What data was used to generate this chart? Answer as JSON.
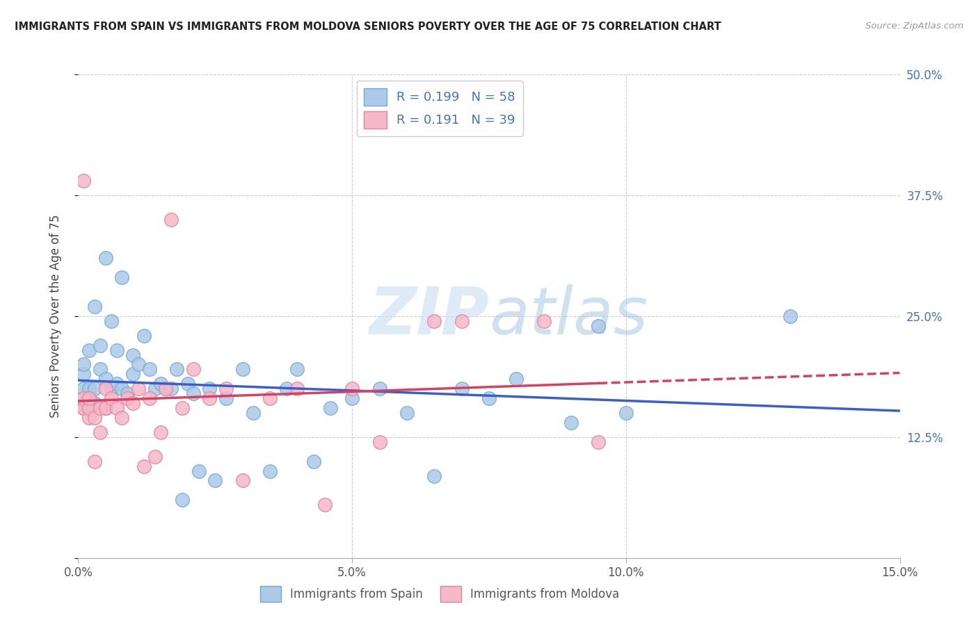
{
  "title": "IMMIGRANTS FROM SPAIN VS IMMIGRANTS FROM MOLDOVA SENIORS POVERTY OVER THE AGE OF 75 CORRELATION CHART",
  "source": "Source: ZipAtlas.com",
  "ylabel": "Seniors Poverty Over the Age of 75",
  "xlim": [
    0,
    0.15
  ],
  "ylim": [
    0,
    0.5
  ],
  "spain_color": "#adc8e8",
  "spain_edge": "#6aaed6",
  "moldova_color": "#f4b8c8",
  "moldova_edge": "#e8809a",
  "trend_spain_color": "#3a5fcd",
  "trend_moldova_color": "#d94060",
  "spain_R": 0.199,
  "spain_N": 58,
  "moldova_R": 0.191,
  "moldova_N": 39,
  "legend_label_spain": "Immigrants from Spain",
  "legend_label_moldova": "Immigrants from Moldova",
  "watermark_zip": "ZIP",
  "watermark_atlas": "atlas",
  "spain_x": [
    0.001,
    0.001,
    0.001,
    0.001,
    0.002,
    0.002,
    0.002,
    0.002,
    0.003,
    0.003,
    0.003,
    0.004,
    0.004,
    0.005,
    0.005,
    0.005,
    0.006,
    0.006,
    0.007,
    0.007,
    0.008,
    0.008,
    0.009,
    0.01,
    0.01,
    0.011,
    0.012,
    0.013,
    0.014,
    0.015,
    0.016,
    0.017,
    0.018,
    0.019,
    0.02,
    0.021,
    0.022,
    0.024,
    0.025,
    0.027,
    0.03,
    0.032,
    0.035,
    0.038,
    0.04,
    0.043,
    0.046,
    0.05,
    0.055,
    0.06,
    0.065,
    0.07,
    0.075,
    0.08,
    0.09,
    0.095,
    0.1,
    0.13
  ],
  "spain_y": [
    0.16,
    0.175,
    0.19,
    0.2,
    0.155,
    0.165,
    0.175,
    0.215,
    0.16,
    0.175,
    0.26,
    0.195,
    0.22,
    0.155,
    0.185,
    0.31,
    0.175,
    0.245,
    0.18,
    0.215,
    0.175,
    0.29,
    0.17,
    0.19,
    0.21,
    0.2,
    0.23,
    0.195,
    0.175,
    0.18,
    0.175,
    0.175,
    0.195,
    0.06,
    0.18,
    0.17,
    0.09,
    0.175,
    0.08,
    0.165,
    0.195,
    0.15,
    0.09,
    0.175,
    0.195,
    0.1,
    0.155,
    0.165,
    0.175,
    0.15,
    0.085,
    0.175,
    0.165,
    0.185,
    0.14,
    0.24,
    0.15,
    0.25
  ],
  "moldova_x": [
    0.001,
    0.001,
    0.001,
    0.001,
    0.002,
    0.002,
    0.002,
    0.003,
    0.003,
    0.004,
    0.004,
    0.005,
    0.005,
    0.006,
    0.007,
    0.008,
    0.009,
    0.01,
    0.011,
    0.012,
    0.013,
    0.014,
    0.015,
    0.016,
    0.017,
    0.019,
    0.021,
    0.024,
    0.027,
    0.03,
    0.035,
    0.04,
    0.045,
    0.05,
    0.055,
    0.065,
    0.07,
    0.085,
    0.095
  ],
  "moldova_y": [
    0.155,
    0.155,
    0.165,
    0.39,
    0.145,
    0.155,
    0.165,
    0.145,
    0.1,
    0.13,
    0.155,
    0.155,
    0.175,
    0.165,
    0.155,
    0.145,
    0.165,
    0.16,
    0.175,
    0.095,
    0.165,
    0.105,
    0.13,
    0.175,
    0.35,
    0.155,
    0.195,
    0.165,
    0.175,
    0.08,
    0.165,
    0.175,
    0.055,
    0.175,
    0.12,
    0.245,
    0.245,
    0.245,
    0.12
  ]
}
